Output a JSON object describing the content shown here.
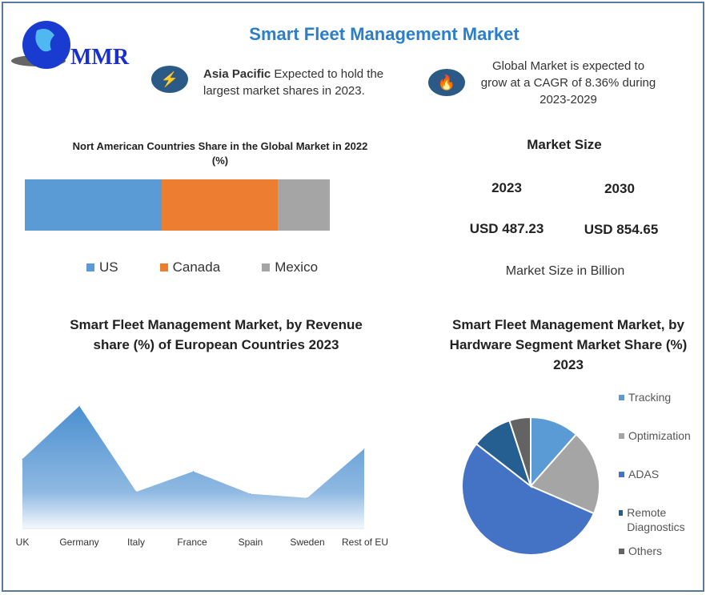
{
  "header": {
    "title": "Smart Fleet Management Market",
    "logo_text": "MMR"
  },
  "highlights": [
    {
      "icon": "lightning-icon",
      "bold": "Asia Pacific",
      "text": " Expected to hold the largest market shares in 2023."
    },
    {
      "icon": "flame-icon",
      "text": "Global Market is expected to grow at a CAGR of 8.36% during 2023-2029"
    }
  ],
  "market_size": {
    "title": "Market Size",
    "years": [
      "2023",
      "2030"
    ],
    "values": [
      "USD 487.23",
      "USD 854.65"
    ],
    "unit_label": "Market Size in Billion"
  },
  "chart_data": [
    {
      "type": "bar",
      "stacked": true,
      "orientation": "horizontal",
      "title": "Nort American Countries Share in the Global Market in 2022 (%)",
      "series": [
        {
          "name": "US",
          "values": [
            45
          ],
          "color": "#5b9bd5"
        },
        {
          "name": "Canada",
          "values": [
            38
          ],
          "color": "#ed7d31"
        },
        {
          "name": "Mexico",
          "values": [
            17
          ],
          "color": "#a5a5a5"
        }
      ],
      "legend": "bottom"
    },
    {
      "type": "area",
      "title": "Smart Fleet Management Market, by Revenue share (%) of European Countries 2023",
      "categories": [
        "UK",
        "Germany",
        "Italy",
        "France",
        "Spain",
        "Sweden",
        "Rest of EU"
      ],
      "values": [
        17,
        30,
        9,
        14,
        8.5,
        7.5,
        19.5
      ],
      "color": "#5b9bd5"
    },
    {
      "type": "pie",
      "title": "Smart Fleet Management Market, by Hardware Segment Market Share (%) 2023",
      "categories": [
        "Tracking",
        "Optimization",
        "ADAS",
        "Remote Diagnostics",
        "Others"
      ],
      "values": [
        11.5,
        20,
        54,
        9.5,
        5
      ],
      "colors": [
        "#5b9bd5",
        "#a5a5a5",
        "#4472c4",
        "#255e91",
        "#636363"
      ],
      "legend": "right"
    }
  ]
}
